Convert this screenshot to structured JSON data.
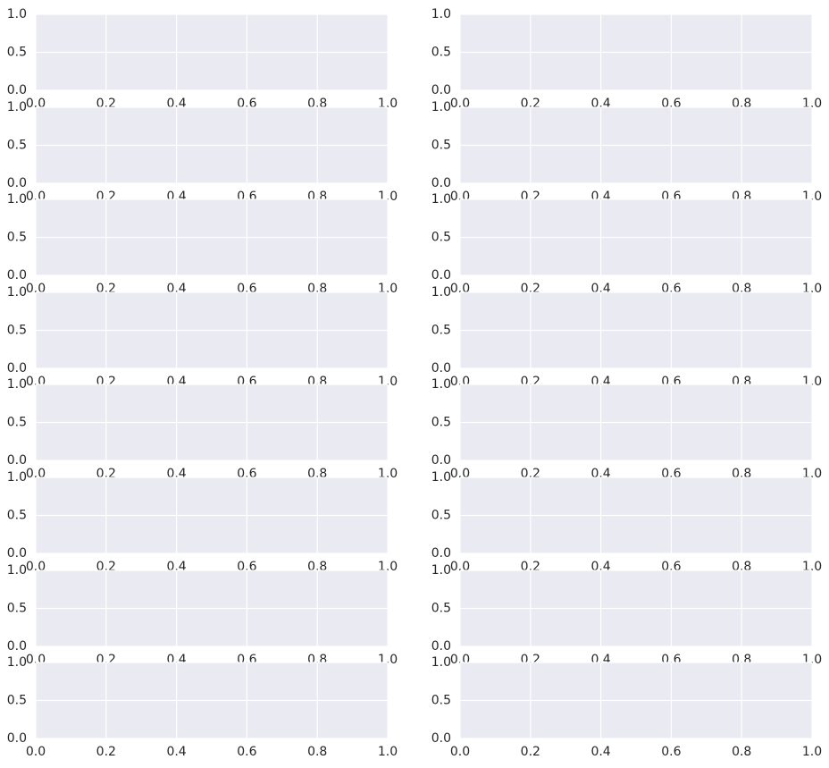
{
  "chart_data": {
    "type": "subplot-grid",
    "rows": 8,
    "cols": 2,
    "style": {
      "axes_facecolor": "#eaeaf2",
      "grid_color": "#ffffff",
      "tick_color": "#262626",
      "figure_background": "#ffffff"
    },
    "grid": true,
    "axes": {
      "xlim": [
        0.0,
        1.0
      ],
      "ylim": [
        0.0,
        1.0
      ],
      "xticks": [
        0.0,
        0.2,
        0.4,
        0.6,
        0.8,
        1.0
      ],
      "yticks": [
        0.0,
        0.5,
        1.0
      ],
      "xtick_labels": [
        "0.0",
        "0.2",
        "0.4",
        "0.6",
        "0.8",
        "1.0"
      ],
      "ytick_labels": [
        "0.0",
        "0.5",
        "1.0"
      ]
    },
    "series": []
  }
}
